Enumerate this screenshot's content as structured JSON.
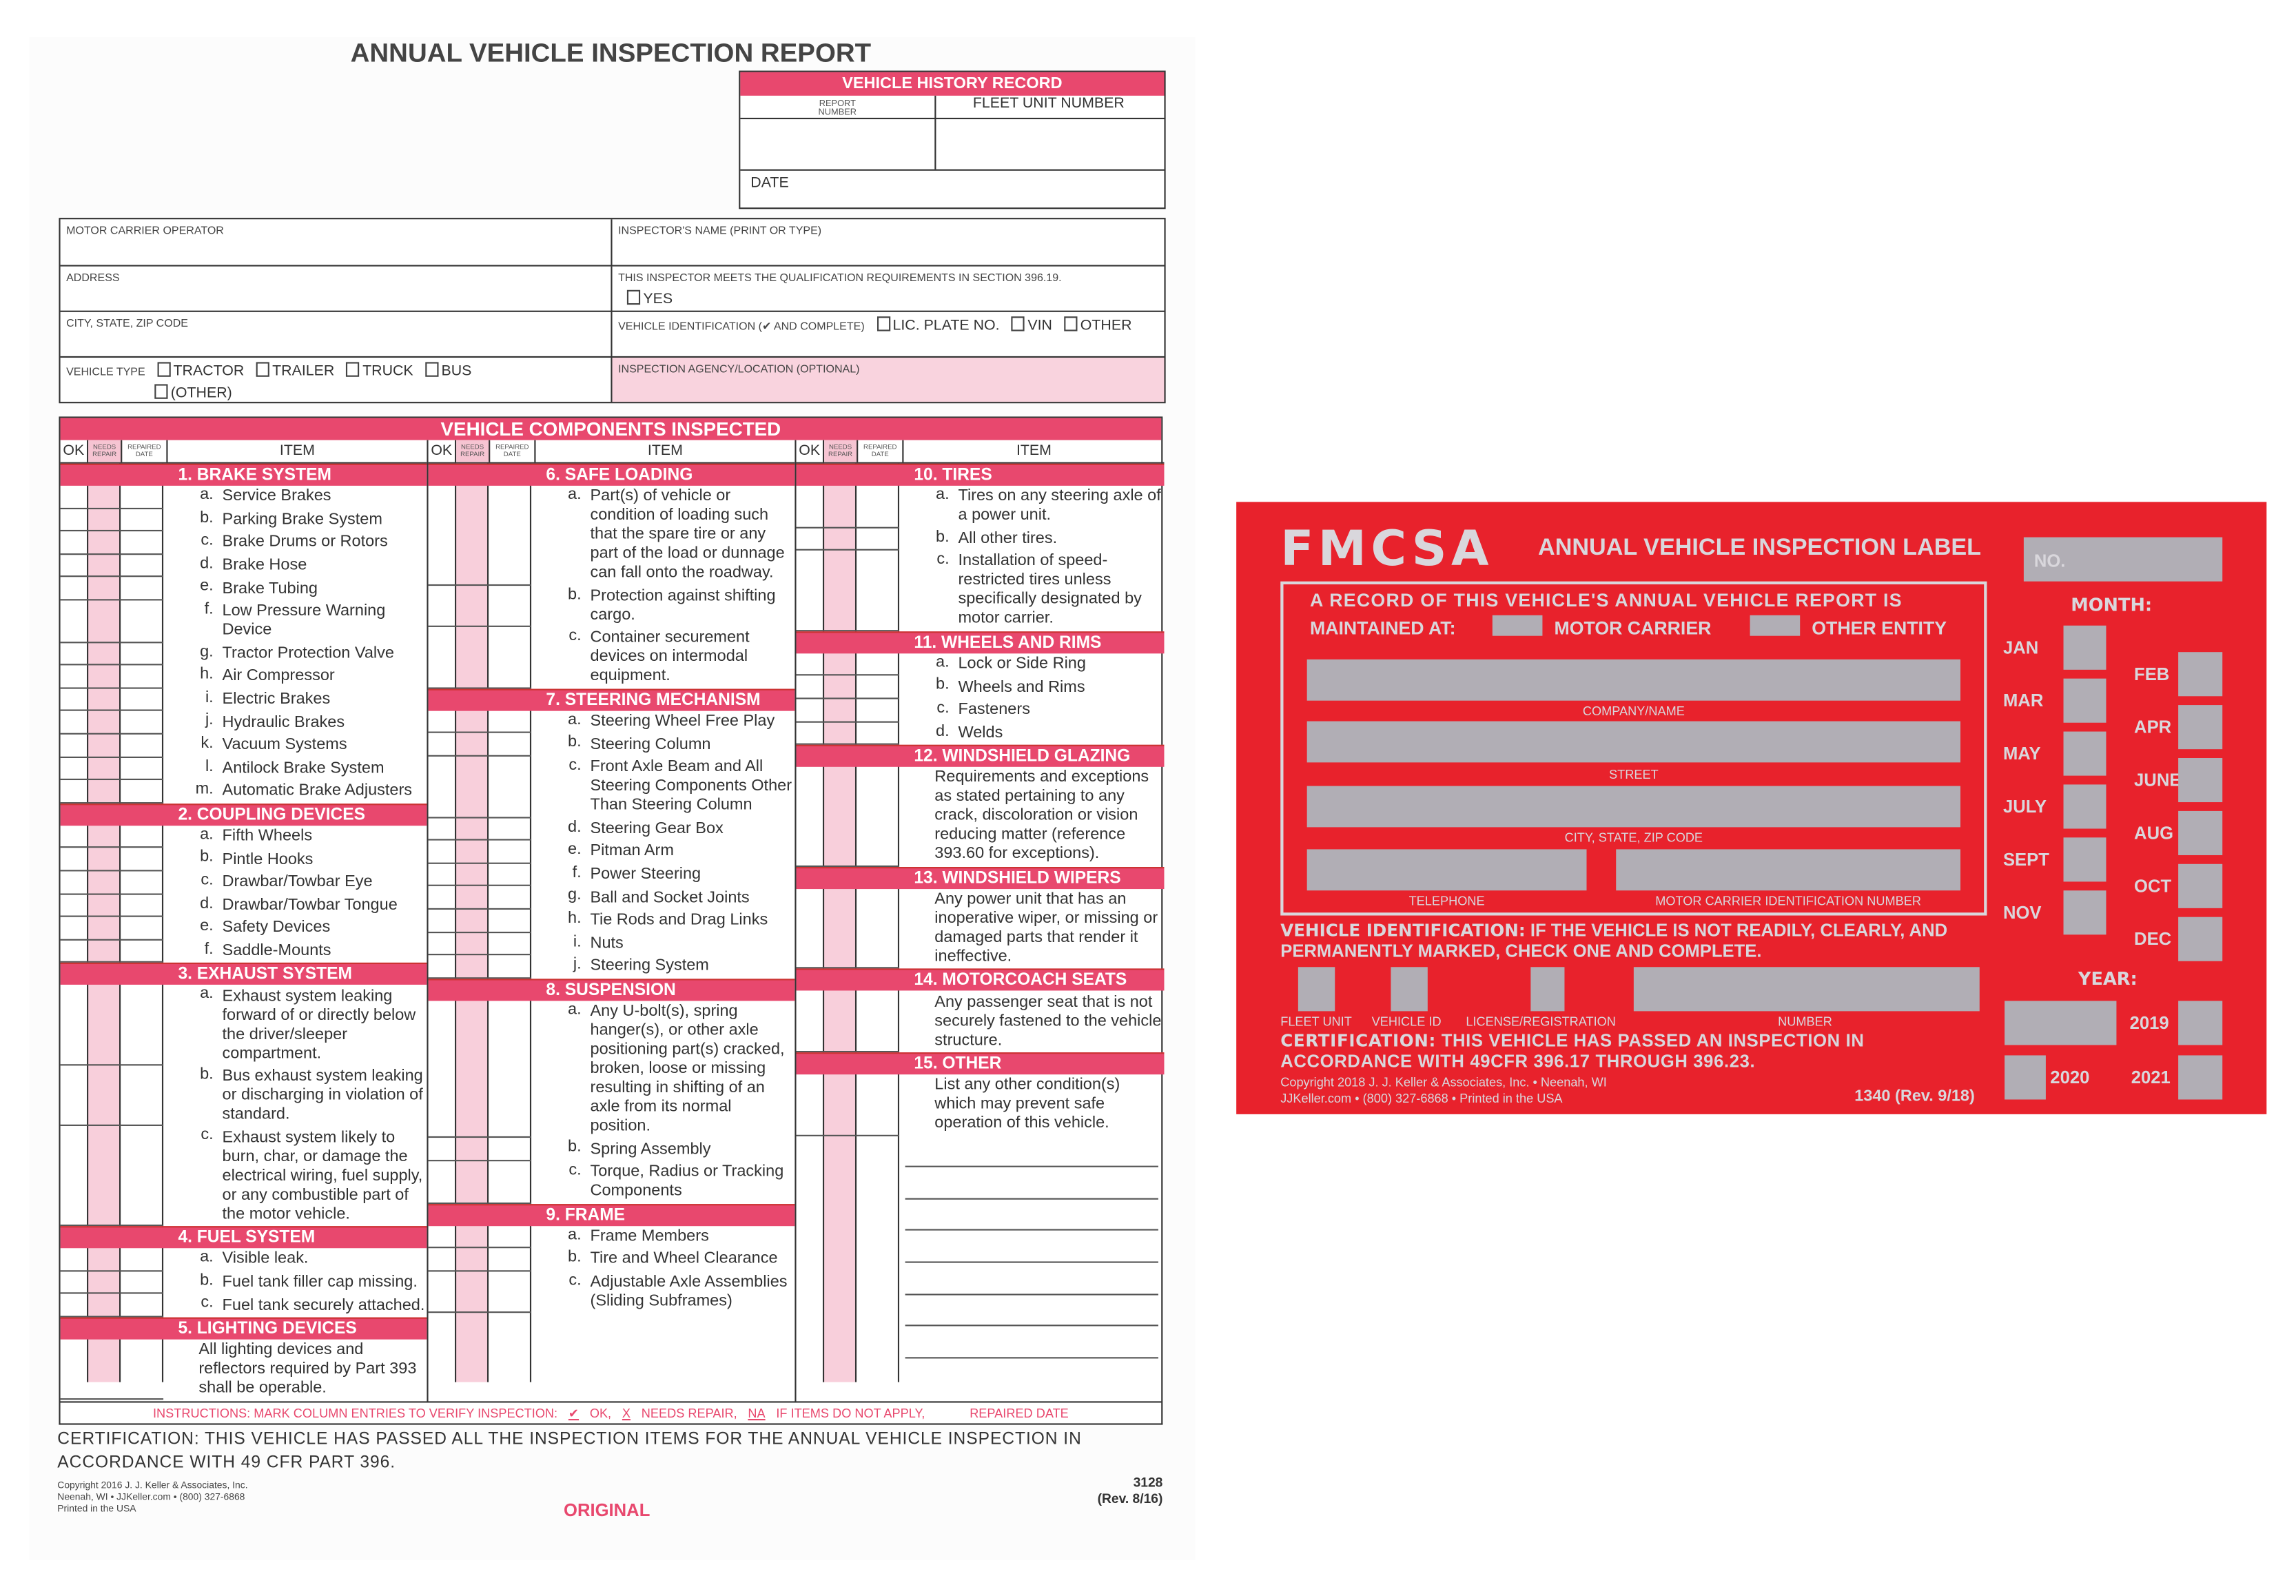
{
  "report": {
    "title": "ANNUAL VEHICLE INSPECTION REPORT",
    "history": {
      "title": "VEHICLE HISTORY RECORD",
      "report_number": "REPORT NUMBER",
      "fleet_unit": "FLEET UNIT NUMBER",
      "date": "DATE"
    },
    "info": {
      "motor_carrier": "MOTOR CARRIER OPERATOR",
      "address": "ADDRESS",
      "city": "CITY, STATE, ZIP CODE",
      "vehicle_type": "VEHICLE TYPE",
      "vehicle_types": [
        "TRACTOR",
        "TRAILER",
        "TRUCK",
        "BUS",
        "(OTHER)"
      ],
      "inspector_name": "INSPECTOR'S NAME (PRINT OR TYPE)",
      "qualification": "THIS INSPECTOR MEETS THE QUALIFICATION REQUIREMENTS IN SECTION 396.19.",
      "yes": "YES",
      "vehicle_id": "VEHICLE IDENTIFICATION (✔ AND COMPLETE)",
      "vehicle_id_options": [
        "LIC. PLATE NO.",
        "VIN",
        "OTHER"
      ],
      "agency": "INSPECTION AGENCY/LOCATION (OPTIONAL)"
    },
    "components_title": "VEHICLE COMPONENTS INSPECTED",
    "column_headers": {
      "ok": "OK",
      "needs_repair": "NEEDS REPAIR",
      "repaired_date": "REPAIRED DATE",
      "item": "ITEM"
    },
    "columns": [
      [
        {
          "title": "1. BRAKE SYSTEM",
          "items": [
            [
              "a.",
              "Service Brakes"
            ],
            [
              "b.",
              "Parking Brake System"
            ],
            [
              "c.",
              "Brake Drums or Rotors"
            ],
            [
              "d.",
              "Brake Hose"
            ],
            [
              "e.",
              "Brake Tubing"
            ],
            [
              "f.",
              "Low Pressure Warning Device"
            ],
            [
              "g.",
              "Tractor Protection Valve"
            ],
            [
              "h.",
              "Air Compressor"
            ],
            [
              "i.",
              "Electric Brakes"
            ],
            [
              "j.",
              "Hydraulic Brakes"
            ],
            [
              "k.",
              "Vacuum Systems"
            ],
            [
              "l.",
              "Antilock Brake System"
            ],
            [
              "m.",
              "Automatic Brake Adjusters"
            ]
          ]
        },
        {
          "title": "2. COUPLING DEVICES",
          "items": [
            [
              "a.",
              "Fifth Wheels"
            ],
            [
              "b.",
              "Pintle Hooks"
            ],
            [
              "c.",
              "Drawbar/Towbar Eye"
            ],
            [
              "d.",
              "Drawbar/Towbar Tongue"
            ],
            [
              "e.",
              "Safety Devices"
            ],
            [
              "f.",
              "Saddle-Mounts"
            ]
          ]
        },
        {
          "title": "3. EXHAUST SYSTEM",
          "items": [
            [
              "a.",
              "Exhaust system leaking forward of or directly below the driver/sleeper compartment."
            ],
            [
              "b.",
              "Bus exhaust system leaking or discharging in violation of standard."
            ],
            [
              "c.",
              "Exhaust system likely to burn, char, or damage the electrical wiring, fuel supply, or any combustible part of the motor vehicle."
            ]
          ]
        },
        {
          "title": "4. FUEL SYSTEM",
          "items": [
            [
              "a.",
              "Visible leak."
            ],
            [
              "b.",
              "Fuel tank filler cap missing."
            ],
            [
              "c.",
              "Fuel tank securely attached."
            ]
          ]
        },
        {
          "title": "5. LIGHTING DEVICES",
          "items": [
            [
              "",
              "All lighting devices and reflectors required by Part 393 shall be operable."
            ]
          ]
        }
      ],
      [
        {
          "title": "6. SAFE LOADING",
          "items": [
            [
              "a.",
              "Part(s) of vehicle or condition of loading such that the spare tire or any part of the load or dunnage can fall onto the roadway."
            ],
            [
              "b.",
              "Protection against shifting cargo."
            ],
            [
              "c.",
              "Container securement devices on intermodal equipment."
            ]
          ]
        },
        {
          "title": "7. STEERING MECHANISM",
          "items": [
            [
              "a.",
              "Steering Wheel Free Play"
            ],
            [
              "b.",
              "Steering Column"
            ],
            [
              "c.",
              "Front Axle Beam and All Steering Components Other Than Steering Column"
            ],
            [
              "d.",
              "Steering Gear Box"
            ],
            [
              "e.",
              "Pitman Arm"
            ],
            [
              "f.",
              "Power Steering"
            ],
            [
              "g.",
              "Ball and Socket Joints"
            ],
            [
              "h.",
              "Tie Rods and Drag Links"
            ],
            [
              "i.",
              "Nuts"
            ],
            [
              "j.",
              "Steering System"
            ]
          ]
        },
        {
          "title": "8. SUSPENSION",
          "items": [
            [
              "a.",
              "Any U-bolt(s), spring hanger(s), or other axle positioning part(s) cracked, broken, loose or missing resulting in shifting of an axle from its normal position."
            ],
            [
              "b.",
              "Spring Assembly"
            ],
            [
              "c.",
              "Torque, Radius or Tracking Components"
            ]
          ]
        },
        {
          "title": "9. FRAME",
          "items": [
            [
              "a.",
              "Frame Members"
            ],
            [
              "b.",
              "Tire and Wheel Clearance"
            ],
            [
              "c.",
              "Adjustable Axle Assemblies (Sliding Subframes)"
            ]
          ]
        }
      ],
      [
        {
          "title": "10. TIRES",
          "items": [
            [
              "a.",
              "Tires on any steering axle of a power unit."
            ],
            [
              "b.",
              "All other tires."
            ],
            [
              "c.",
              "Installation of speed-restricted tires unless specifically designated by motor carrier."
            ]
          ]
        },
        {
          "title": "11. WHEELS AND RIMS",
          "items": [
            [
              "a.",
              "Lock or Side Ring"
            ],
            [
              "b.",
              "Wheels and Rims"
            ],
            [
              "c.",
              "Fasteners"
            ],
            [
              "d.",
              "Welds"
            ]
          ]
        },
        {
          "title": "12. WINDSHIELD GLAZING",
          "items": [
            [
              "",
              "Requirements and exceptions as stated pertaining to any crack, discoloration or vision reducing matter (reference 393.60 for exceptions)."
            ]
          ]
        },
        {
          "title": "13. WINDSHIELD WIPERS",
          "items": [
            [
              "",
              "Any power unit that has an inoperative wiper, or missing or damaged parts that render it ineffective."
            ]
          ]
        },
        {
          "title": "14. MOTORCOACH SEATS",
          "items": [
            [
              "",
              "Any passenger seat that is not securely fastened to the vehicle structure."
            ]
          ]
        },
        {
          "title": "15. OTHER",
          "items": [
            [
              "",
              "List any other condition(s) which may prevent safe operation of this vehicle."
            ]
          ],
          "blank_lines": 7
        }
      ]
    ],
    "instructions": {
      "lead": "INSTRUCTIONS: MARK COLUMN ENTRIES TO VERIFY INSPECTION:",
      "ok_mark": "✔",
      "ok": "OK,",
      "x_mark": "X",
      "needs": "NEEDS REPAIR,",
      "na_mark": "NA",
      "na": "IF ITEMS DO NOT APPLY,",
      "rd": "REPAIRED DATE"
    },
    "certification": "CERTIFICATION: THIS VEHICLE HAS PASSED ALL THE INSPECTION ITEMS FOR THE ANNUAL VEHICLE INSPECTION IN ACCORDANCE WITH 49 CFR PART 396.",
    "copyright": [
      "Copyright 2016 J. J. Keller & Associates, Inc.",
      "Neenah, WI • JJKeller.com • (800) 327-6868",
      "Printed in the USA"
    ],
    "copy_type": "ORIGINAL",
    "form_number": "3128",
    "revision": "(Rev. 8/16)"
  },
  "label": {
    "brand": "FMCSA",
    "title": "ANNUAL VEHICLE INSPECTION LABEL",
    "no": "NO.",
    "record_line1": "A RECORD OF THIS VEHICLE'S ANNUAL VEHICLE REPORT IS",
    "record_line2": "MAINTAINED AT:",
    "motor_carrier": "MOTOR CARRIER",
    "other_entity": "OTHER ENTITY",
    "company": "COMPANY/NAME",
    "street": "STREET",
    "city": "CITY, STATE, ZIP CODE",
    "telephone": "TELEPHONE",
    "mcid": "MOTOR CARRIER IDENTIFICATION NUMBER",
    "vid_bold": "VEHICLE IDENTIFICATION:",
    "vid_text": "IF THE VEHICLE IS NOT READILY, CLEARLY, AND PERMANENTLY MARKED, CHECK ONE AND COMPLETE.",
    "vid_fields": {
      "fleet": "FLEET UNIT",
      "vehicle_id": "VEHICLE ID",
      "license": "LICENSE/REGISTRATION",
      "number": "NUMBER"
    },
    "cert_bold": "CERTIFICATION:",
    "cert_text": "THIS VEHICLE HAS PASSED AN INSPECTION IN ACCORDANCE WITH 49CFR 396.17 THROUGH 396.23.",
    "copyright1": "Copyright 2018 J. J. Keller & Associates, Inc. • Neenah, WI",
    "copyright2": "JJKeller.com • (800) 327-6868 • Printed in the USA",
    "form": "1340 (Rev. 9/18)",
    "month_title": "MONTH:",
    "months_left": [
      "JAN",
      "MAR",
      "MAY",
      "JULY",
      "SEPT",
      "NOV"
    ],
    "months_right": [
      "FEB",
      "APR",
      "JUNE",
      "AUG",
      "OCT",
      "DEC"
    ],
    "year_title": "YEAR:",
    "years": [
      "2019",
      "2020",
      "2021"
    ],
    "colors": {
      "label_red": "#e8222c",
      "silver": "#b1aeb5"
    }
  },
  "colors": {
    "form_pink": "#e8486e",
    "column_pink": "#f8cfdb"
  }
}
